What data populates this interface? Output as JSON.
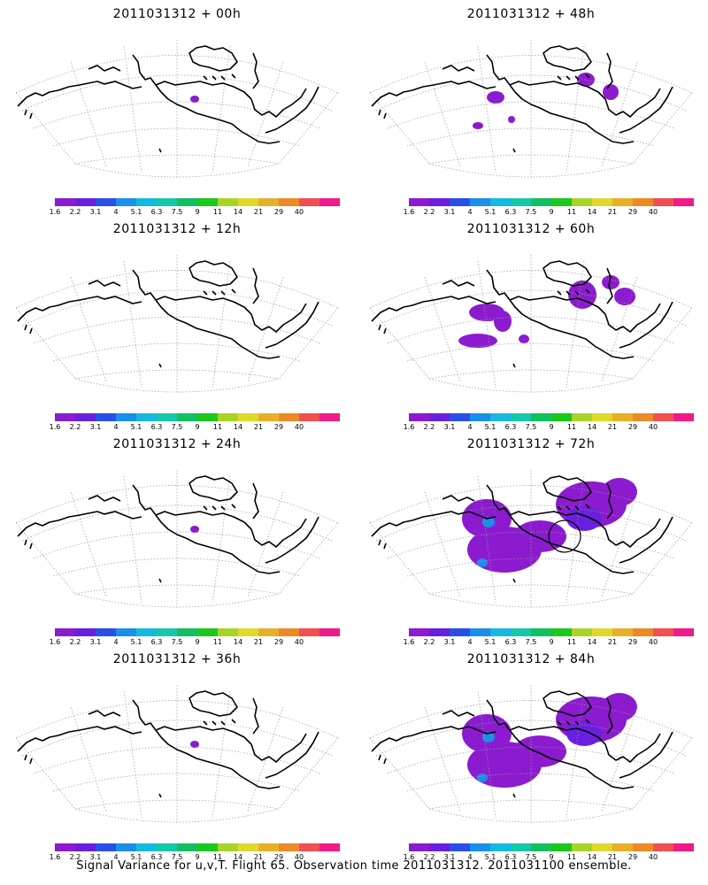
{
  "panels": [
    {
      "title": "2011031312 + 00h",
      "signal": "trace"
    },
    {
      "title": "2011031312 + 48h",
      "signal": "few"
    },
    {
      "title": "2011031312 + 12h",
      "signal": "none"
    },
    {
      "title": "2011031312 + 60h",
      "signal": "scattered"
    },
    {
      "title": "2011031312 + 24h",
      "signal": "trace"
    },
    {
      "title": "2011031312 + 72h",
      "signal": "widespread"
    },
    {
      "title": "2011031312 + 36h",
      "signal": "trace"
    },
    {
      "title": "2011031312 + 84h",
      "signal": "widespread"
    }
  ],
  "colorbar": {
    "labels": [
      "1.6",
      "2.2",
      "3.1",
      "4",
      "5.1",
      "6.3",
      "7.5",
      "9",
      "11",
      "14",
      "21",
      "29",
      "40"
    ],
    "colors": [
      "#8c1bd0",
      "#6a1fe0",
      "#2a4fe8",
      "#1a8fe8",
      "#17b8e0",
      "#15c8a8",
      "#12c060",
      "#1bc81b",
      "#a8d428",
      "#e0d82a",
      "#e8b028",
      "#ec8a28",
      "#f05050",
      "#f01a88"
    ]
  },
  "footer": "Signal Variance for u,v,T. Flight 65. Observation time 2011031312. 2011031100 ensemble."
}
